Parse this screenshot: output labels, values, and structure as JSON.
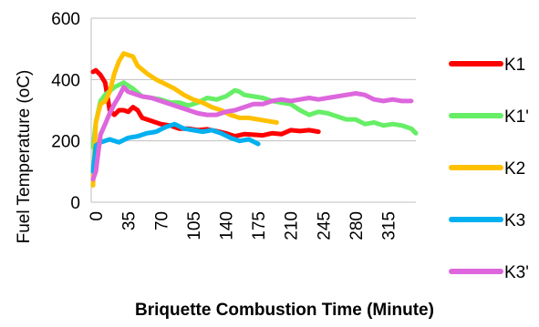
{
  "chart_data": {
    "type": "line",
    "xlabel": "Briquette Combustion Time (Minute)",
    "ylabel": "Fuel Temperature  (oC)",
    "ylim": [
      0,
      600
    ],
    "xlim": [
      -5,
      345
    ],
    "yticks": [
      "0",
      "200",
      "400",
      "600"
    ],
    "xticks": [
      "0",
      "35",
      "70",
      "105",
      "140",
      "175",
      "210",
      "245",
      "280",
      "315"
    ],
    "xtick_values": [
      0,
      35,
      70,
      105,
      140,
      175,
      210,
      245,
      280,
      315
    ],
    "grid": "horizontal",
    "legend_position": "right",
    "series": [
      {
        "name": "K1",
        "color": "#ff0000",
        "points": [
          [
            -3,
            425
          ],
          [
            0,
            430
          ],
          [
            5,
            415
          ],
          [
            10,
            390
          ],
          [
            15,
            300
          ],
          [
            20,
            285
          ],
          [
            25,
            300
          ],
          [
            30,
            300
          ],
          [
            35,
            295
          ],
          [
            40,
            310
          ],
          [
            45,
            300
          ],
          [
            50,
            275
          ],
          [
            60,
            265
          ],
          [
            70,
            255
          ],
          [
            80,
            250
          ],
          [
            90,
            240
          ],
          [
            100,
            240
          ],
          [
            110,
            235
          ],
          [
            120,
            238
          ],
          [
            130,
            232
          ],
          [
            140,
            225
          ],
          [
            150,
            215
          ],
          [
            160,
            222
          ],
          [
            170,
            220
          ],
          [
            180,
            218
          ],
          [
            190,
            225
          ],
          [
            200,
            222
          ],
          [
            210,
            235
          ],
          [
            220,
            232
          ],
          [
            230,
            235
          ],
          [
            240,
            230
          ]
        ]
      },
      {
        "name": "K1'",
        "color": "#66ee66",
        "points": [
          [
            -3,
            180
          ],
          [
            0,
            260
          ],
          [
            5,
            330
          ],
          [
            10,
            350
          ],
          [
            20,
            375
          ],
          [
            30,
            390
          ],
          [
            40,
            370
          ],
          [
            50,
            345
          ],
          [
            60,
            340
          ],
          [
            70,
            335
          ],
          [
            80,
            325
          ],
          [
            90,
            325
          ],
          [
            100,
            315
          ],
          [
            110,
            325
          ],
          [
            120,
            340
          ],
          [
            130,
            335
          ],
          [
            140,
            345
          ],
          [
            150,
            365
          ],
          [
            155,
            360
          ],
          [
            160,
            350
          ],
          [
            170,
            345
          ],
          [
            180,
            340
          ],
          [
            190,
            330
          ],
          [
            200,
            325
          ],
          [
            210,
            320
          ],
          [
            220,
            300
          ],
          [
            230,
            285
          ],
          [
            240,
            295
          ],
          [
            250,
            290
          ],
          [
            260,
            280
          ],
          [
            270,
            270
          ],
          [
            280,
            270
          ],
          [
            290,
            255
          ],
          [
            300,
            260
          ],
          [
            310,
            250
          ],
          [
            320,
            255
          ],
          [
            330,
            250
          ],
          [
            340,
            240
          ],
          [
            345,
            225
          ]
        ]
      },
      {
        "name": "K2",
        "color": "#ffc000",
        "points": [
          [
            -3,
            55
          ],
          [
            0,
            260
          ],
          [
            5,
            320
          ],
          [
            10,
            330
          ],
          [
            15,
            360
          ],
          [
            20,
            420
          ],
          [
            25,
            460
          ],
          [
            30,
            485
          ],
          [
            35,
            480
          ],
          [
            40,
            475
          ],
          [
            45,
            445
          ],
          [
            55,
            420
          ],
          [
            65,
            400
          ],
          [
            75,
            385
          ],
          [
            85,
            370
          ],
          [
            95,
            350
          ],
          [
            105,
            335
          ],
          [
            115,
            325
          ],
          [
            125,
            310
          ],
          [
            135,
            300
          ],
          [
            145,
            285
          ],
          [
            155,
            275
          ],
          [
            165,
            275
          ],
          [
            175,
            270
          ],
          [
            185,
            265
          ],
          [
            195,
            260
          ]
        ]
      },
      {
        "name": "K3",
        "color": "#00b0f0",
        "points": [
          [
            -3,
            100
          ],
          [
            0,
            185
          ],
          [
            5,
            195
          ],
          [
            15,
            205
          ],
          [
            25,
            195
          ],
          [
            35,
            210
          ],
          [
            45,
            215
          ],
          [
            55,
            225
          ],
          [
            65,
            230
          ],
          [
            75,
            245
          ],
          [
            85,
            255
          ],
          [
            95,
            240
          ],
          [
            105,
            235
          ],
          [
            115,
            230
          ],
          [
            125,
            235
          ],
          [
            135,
            225
          ],
          [
            145,
            210
          ],
          [
            155,
            200
          ],
          [
            165,
            205
          ],
          [
            175,
            190
          ]
        ]
      },
      {
        "name": "K3'",
        "color": "#dd66dd",
        "points": [
          [
            -3,
            75
          ],
          [
            0,
            100
          ],
          [
            5,
            220
          ],
          [
            10,
            255
          ],
          [
            15,
            290
          ],
          [
            20,
            320
          ],
          [
            25,
            345
          ],
          [
            30,
            375
          ],
          [
            35,
            360
          ],
          [
            40,
            355
          ],
          [
            50,
            345
          ],
          [
            60,
            340
          ],
          [
            70,
            330
          ],
          [
            80,
            320
          ],
          [
            90,
            310
          ],
          [
            100,
            300
          ],
          [
            110,
            290
          ],
          [
            120,
            285
          ],
          [
            130,
            285
          ],
          [
            140,
            295
          ],
          [
            150,
            300
          ],
          [
            160,
            310
          ],
          [
            170,
            320
          ],
          [
            180,
            320
          ],
          [
            190,
            330
          ],
          [
            200,
            335
          ],
          [
            210,
            330
          ],
          [
            220,
            335
          ],
          [
            230,
            340
          ],
          [
            240,
            335
          ],
          [
            250,
            340
          ],
          [
            260,
            345
          ],
          [
            270,
            350
          ],
          [
            280,
            355
          ],
          [
            290,
            350
          ],
          [
            300,
            335
          ],
          [
            310,
            330
          ],
          [
            320,
            335
          ],
          [
            330,
            330
          ],
          [
            340,
            330
          ]
        ]
      }
    ]
  }
}
